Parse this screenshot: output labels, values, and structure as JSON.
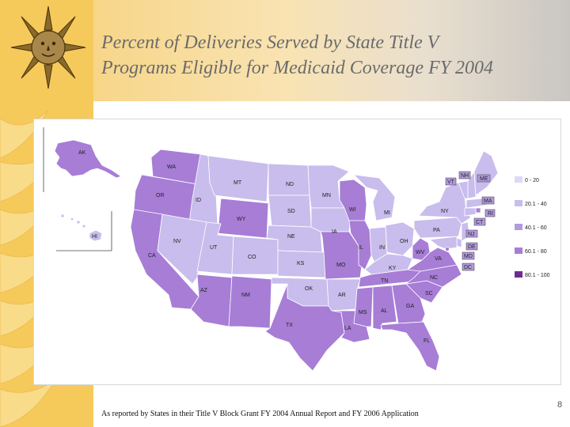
{
  "title_line1": "Percent of Deliveries Served by State Title V",
  "title_line2": "Programs Eligible for Medicaid Coverage FY 2004",
  "footnote": "As reported by States in their Title V Block Grant FY 2004 Annual Report and FY 2006 Application",
  "page_number": "8",
  "colors": {
    "tier1": "#ded9f6",
    "tier2": "#c8bdec",
    "tier3": "#b39ade",
    "tier4": "#a77dd6",
    "tier5": "#6d2c91",
    "border": "#ffffff",
    "boxed_label_fill": "#b39ade"
  },
  "legend": [
    {
      "label": "0 - 20",
      "tier": 1
    },
    {
      "label": "20.1 - 40",
      "tier": 2
    },
    {
      "label": "40.1 - 60",
      "tier": 3
    },
    {
      "label": "60.1 - 80",
      "tier": 4
    },
    {
      "label": "80.1 - 100",
      "tier": 5
    }
  ],
  "states": [
    {
      "abbr": "WA",
      "tier": 4
    },
    {
      "abbr": "OR",
      "tier": 4
    },
    {
      "abbr": "CA",
      "tier": 4
    },
    {
      "abbr": "ID",
      "tier": 2
    },
    {
      "abbr": "NV",
      "tier": 2
    },
    {
      "abbr": "MT",
      "tier": 2
    },
    {
      "abbr": "WY",
      "tier": 4
    },
    {
      "abbr": "UT",
      "tier": 2
    },
    {
      "abbr": "CO",
      "tier": 2
    },
    {
      "abbr": "AZ",
      "tier": 4
    },
    {
      "abbr": "NM",
      "tier": 4
    },
    {
      "abbr": "ND",
      "tier": 2
    },
    {
      "abbr": "SD",
      "tier": 2
    },
    {
      "abbr": "NE",
      "tier": 2
    },
    {
      "abbr": "KS",
      "tier": 2
    },
    {
      "abbr": "OK",
      "tier": 2
    },
    {
      "abbr": "TX",
      "tier": 4
    },
    {
      "abbr": "MN",
      "tier": 2
    },
    {
      "abbr": "IA",
      "tier": 2
    },
    {
      "abbr": "MO",
      "tier": 4
    },
    {
      "abbr": "AR",
      "tier": 2
    },
    {
      "abbr": "LA",
      "tier": 4
    },
    {
      "abbr": "WI",
      "tier": 4
    },
    {
      "abbr": "IL",
      "tier": 4
    },
    {
      "abbr": "MI",
      "tier": 2
    },
    {
      "abbr": "IN",
      "tier": 2
    },
    {
      "abbr": "OH",
      "tier": 2
    },
    {
      "abbr": "KY",
      "tier": 2
    },
    {
      "abbr": "TN",
      "tier": 4
    },
    {
      "abbr": "MS",
      "tier": 4
    },
    {
      "abbr": "AL",
      "tier": 4
    },
    {
      "abbr": "GA",
      "tier": 4
    },
    {
      "abbr": "FL",
      "tier": 4
    },
    {
      "abbr": "SC",
      "tier": 4
    },
    {
      "abbr": "NC",
      "tier": 4
    },
    {
      "abbr": "VA",
      "tier": 4
    },
    {
      "abbr": "WV",
      "tier": 4
    },
    {
      "abbr": "PA",
      "tier": 2
    },
    {
      "abbr": "NY",
      "tier": 2
    },
    {
      "abbr": "VT",
      "tier": 2
    },
    {
      "abbr": "NH",
      "tier": 2
    },
    {
      "abbr": "ME",
      "tier": 2
    },
    {
      "abbr": "MA",
      "tier": 2
    },
    {
      "abbr": "RI",
      "tier": 4
    },
    {
      "abbr": "CT",
      "tier": 2
    },
    {
      "abbr": "NJ",
      "tier": 2
    },
    {
      "abbr": "DE",
      "tier": 2
    },
    {
      "abbr": "MD",
      "tier": 2
    },
    {
      "abbr": "DC",
      "tier": 4
    },
    {
      "abbr": "AK",
      "tier": 4
    },
    {
      "abbr": "HI",
      "tier": 2
    }
  ]
}
